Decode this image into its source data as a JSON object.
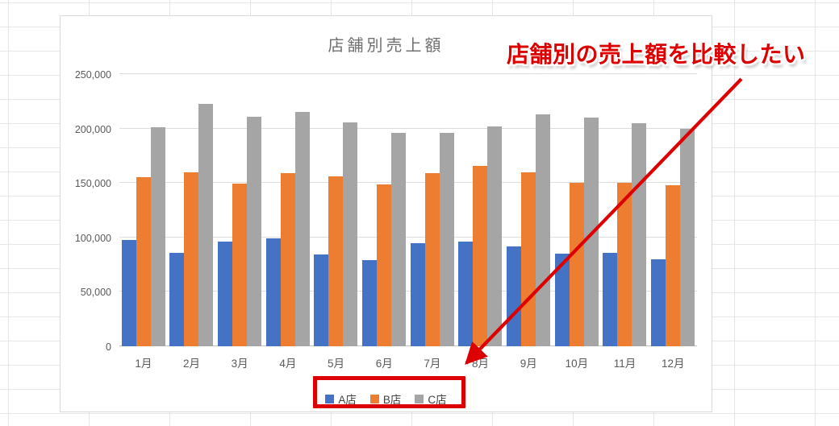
{
  "annotation": {
    "note_text": "店舗別の売上額を比較したい",
    "red": "#dd0000"
  },
  "chart_data": {
    "type": "bar",
    "title": "店舗別売上額",
    "categories": [
      "1月",
      "2月",
      "3月",
      "4月",
      "5月",
      "6月",
      "7月",
      "8月",
      "9月",
      "10月",
      "11月",
      "12月"
    ],
    "series": [
      {
        "name": "A店",
        "color": "#4472c4",
        "values": [
          98000,
          86000,
          96000,
          99000,
          84000,
          79500,
          95000,
          96000,
          91500,
          85000,
          86000,
          80000
        ]
      },
      {
        "name": "B店",
        "color": "#ed7d31",
        "values": [
          155000,
          160000,
          149500,
          159000,
          156000,
          149000,
          159000,
          165500,
          160000,
          150000,
          150000,
          148000
        ]
      },
      {
        "name": "C店",
        "color": "#a5a5a5",
        "values": [
          201000,
          223000,
          211000,
          215000,
          205500,
          196000,
          196000,
          202000,
          213000,
          210000,
          205000,
          199500
        ]
      }
    ],
    "ylim": [
      0,
      250000
    ],
    "yticks": [
      "0",
      "50,000",
      "100,000",
      "150,000",
      "200,000",
      "250,000"
    ],
    "grid": true,
    "legend_position": "bottom",
    "colors": {
      "gridline": "#dcdcdc",
      "axis_text": "#595959",
      "title_text": "#707070"
    }
  }
}
